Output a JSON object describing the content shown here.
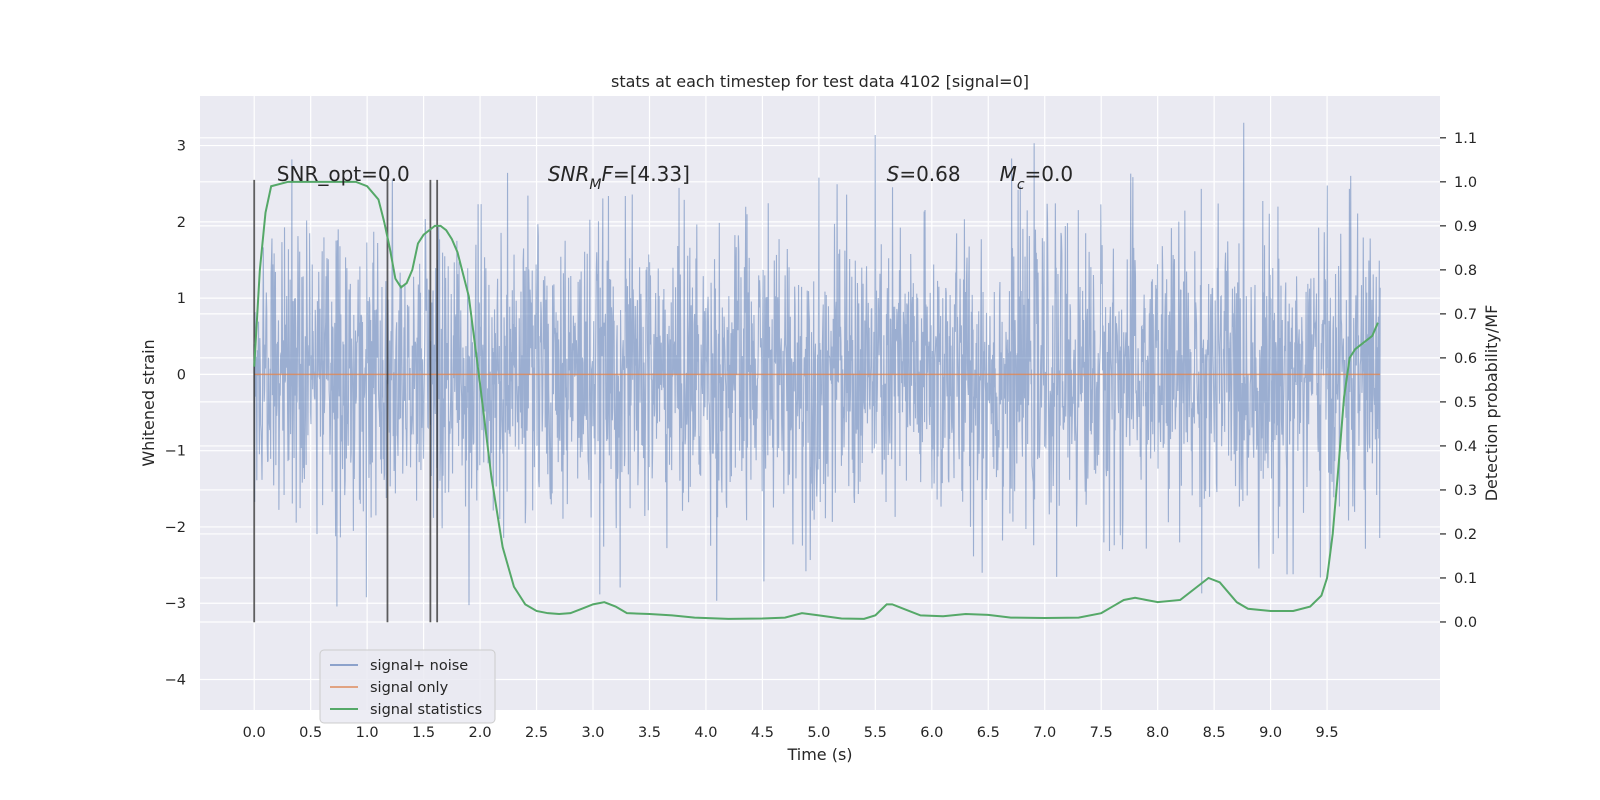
{
  "chart_data": {
    "type": "line",
    "title": "stats at each timestep for test data 4102 [signal=0]",
    "xlabel": "Time (s)",
    "ylabel_left": "Whitened strain",
    "ylabel_right": "Detection probability/MF",
    "xlim": [
      -0.48,
      10.5
    ],
    "ylim_left": [
      -4.4,
      3.65
    ],
    "ylim_right": [
      -0.2,
      1.195
    ],
    "x_ticks": [
      0.0,
      0.5,
      1.0,
      1.5,
      2.0,
      2.5,
      3.0,
      3.5,
      4.0,
      4.5,
      5.0,
      5.5,
      6.0,
      6.5,
      7.0,
      7.5,
      8.0,
      8.5,
      9.0,
      9.5
    ],
    "x_tick_labels": [
      "0.0",
      "0.5",
      "1.0",
      "1.5",
      "2.0",
      "2.5",
      "3.0",
      "3.5",
      "4.0",
      "4.5",
      "5.0",
      "5.5",
      "6.0",
      "6.5",
      "7.0",
      "7.5",
      "8.0",
      "8.5",
      "9.0",
      "9.5"
    ],
    "y_left_ticks": [
      3,
      2,
      1,
      0,
      -1,
      -2,
      -3,
      -4
    ],
    "y_left_tick_labels": [
      "3",
      "2",
      "1",
      "0",
      "−1",
      "−2",
      "−3",
      "−4"
    ],
    "y_right_ticks": [
      1.1,
      1.0,
      0.9,
      0.8,
      0.7,
      0.6,
      0.5,
      0.4,
      0.3,
      0.2,
      0.1,
      0.0
    ],
    "y_right_tick_labels": [
      "1.1",
      "1.0",
      "0.9",
      "0.8",
      "0.7",
      "0.6",
      "0.5",
      "0.4",
      "0.3",
      "0.2",
      "0.1",
      "0.0"
    ],
    "grid": true,
    "legend_position": "lower-left",
    "colors": {
      "plot_background": "#eaeaf2",
      "grid": "#ffffff",
      "noise": "#4c72b0",
      "signal_only": "#dd8452",
      "statistics": "#55a868",
      "markers": "#2b2b2b"
    },
    "annotations": [
      {
        "text": "SNR_opt=0.0",
        "x": 0.2,
        "y_right": 1.0
      },
      {
        "text_parts": [
          {
            "t": "SNR",
            "italic": true
          },
          {
            "t": "M",
            "italic": true,
            "sub": true
          },
          {
            "t": "F",
            "italic": true
          },
          {
            "t": "=[4.33]"
          }
        ],
        "x": 2.6,
        "y_right": 1.0
      },
      {
        "text_parts": [
          {
            "t": "S",
            "italic": true
          },
          {
            "t": "=0.68"
          }
        ],
        "x": 5.6,
        "y_right": 1.0
      },
      {
        "text_parts": [
          {
            "t": "M",
            "italic": true
          },
          {
            "t": "c",
            "italic": true,
            "sub": true
          },
          {
            "t": "=0.0"
          }
        ],
        "x": 6.6,
        "y_right": 1.0
      }
    ],
    "series": [
      {
        "name": "signal+ noise",
        "axis": "left",
        "style": "dense-noise",
        "x_range": [
          0.0,
          9.97
        ],
        "core_range": [
          -1.3,
          1.4
        ],
        "typical_range": [
          -2.1,
          2.4
        ],
        "max": 3.3,
        "min": -3.9
      },
      {
        "name": "signal only",
        "axis": "left",
        "x": [
          0.0,
          9.97
        ],
        "y": [
          0.0,
          0.0
        ]
      },
      {
        "name": "signal statistics",
        "axis": "right",
        "x": [
          0.0,
          0.05,
          0.1,
          0.15,
          0.3,
          0.5,
          0.7,
          0.9,
          1.0,
          1.1,
          1.15,
          1.2,
          1.25,
          1.3,
          1.35,
          1.4,
          1.45,
          1.5,
          1.55,
          1.6,
          1.65,
          1.7,
          1.75,
          1.8,
          1.9,
          2.0,
          2.1,
          2.2,
          2.3,
          2.4,
          2.5,
          2.6,
          2.7,
          2.8,
          2.9,
          3.0,
          3.1,
          3.2,
          3.3,
          3.5,
          3.7,
          3.9,
          4.2,
          4.5,
          4.7,
          4.85,
          5.0,
          5.2,
          5.4,
          5.5,
          5.6,
          5.65,
          5.75,
          5.9,
          6.1,
          6.3,
          6.5,
          6.7,
          7.0,
          7.3,
          7.5,
          7.6,
          7.7,
          7.8,
          7.9,
          8.0,
          8.2,
          8.35,
          8.45,
          8.55,
          8.7,
          8.8,
          9.0,
          9.2,
          9.35,
          9.45,
          9.5,
          9.55,
          9.6,
          9.65,
          9.7,
          9.75,
          9.8,
          9.85,
          9.9,
          9.95
        ],
        "y": [
          0.58,
          0.8,
          0.93,
          0.99,
          1.0,
          1.0,
          1.0,
          1.0,
          0.99,
          0.96,
          0.91,
          0.85,
          0.78,
          0.76,
          0.77,
          0.8,
          0.86,
          0.88,
          0.89,
          0.9,
          0.9,
          0.89,
          0.87,
          0.84,
          0.74,
          0.54,
          0.33,
          0.17,
          0.08,
          0.04,
          0.025,
          0.02,
          0.018,
          0.02,
          0.03,
          0.04,
          0.045,
          0.035,
          0.02,
          0.018,
          0.015,
          0.01,
          0.007,
          0.008,
          0.01,
          0.02,
          0.015,
          0.008,
          0.007,
          0.015,
          0.04,
          0.04,
          0.03,
          0.015,
          0.013,
          0.018,
          0.016,
          0.01,
          0.009,
          0.01,
          0.02,
          0.035,
          0.05,
          0.055,
          0.05,
          0.045,
          0.05,
          0.08,
          0.1,
          0.09,
          0.045,
          0.03,
          0.025,
          0.025,
          0.035,
          0.06,
          0.1,
          0.2,
          0.35,
          0.51,
          0.6,
          0.62,
          0.63,
          0.64,
          0.65,
          0.68
        ]
      }
    ],
    "vertical_markers": {
      "axis": "left",
      "x": [
        0.0,
        1.18,
        1.56,
        1.62
      ],
      "y_top": 2.55,
      "y_bottom": -3.25
    }
  }
}
